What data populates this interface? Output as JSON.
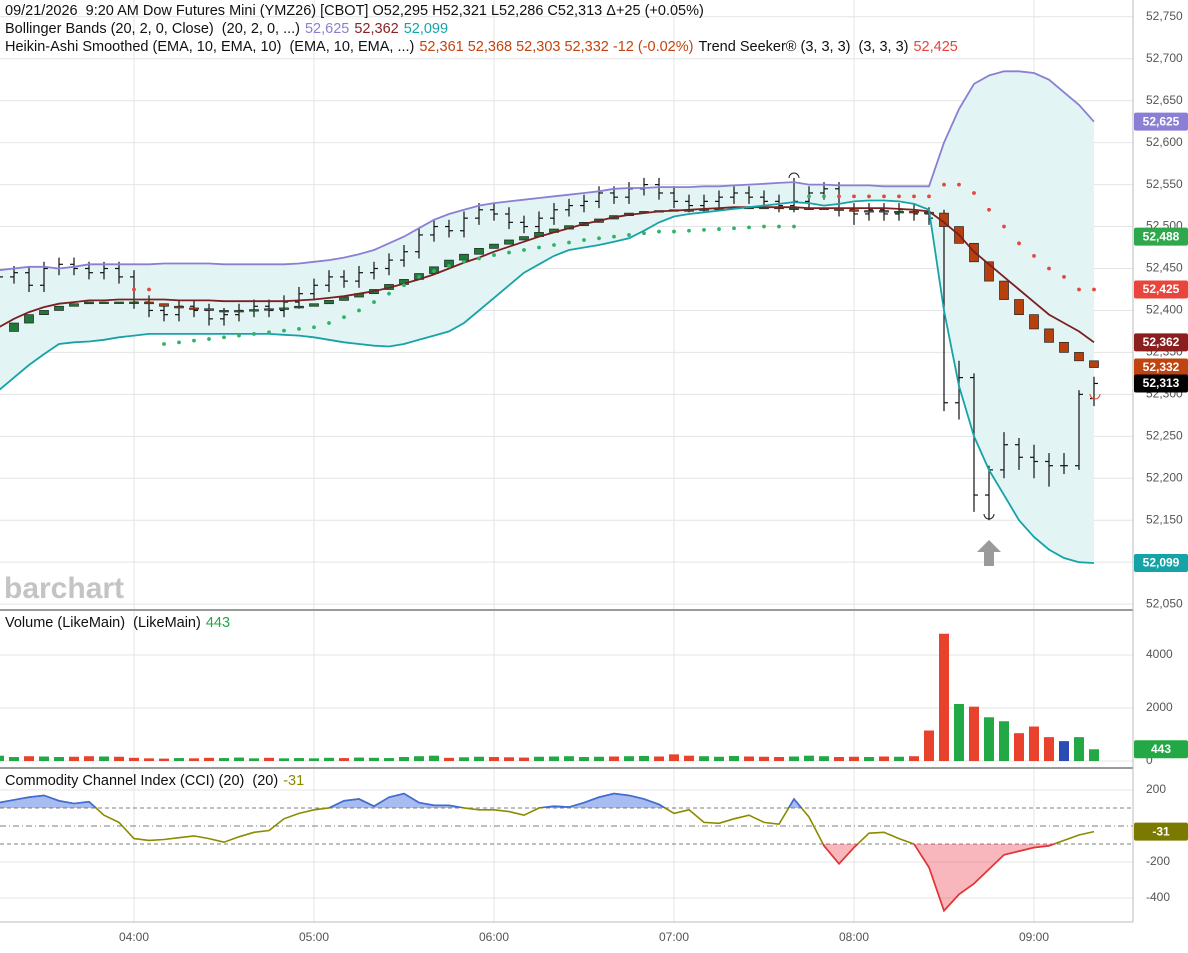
{
  "watermark": "barchart",
  "chart_data": [
    {
      "type": "ohlc",
      "legend_lines": [
        [
          {
            "text": "09/21/2026  9:20 AM Dow Futures Mini (YMZ26) [CBOT] O52,295 H52,321 L52,286 C52,313 Δ+25 (+0.05%)",
            "color": "#111111"
          }
        ],
        [
          {
            "text": "Bollinger Bands (20, 2, 0, Close)  (20, 2, 0, ...)",
            "color": "#111111"
          },
          {
            "text": "52,625",
            "color": "#8a7fd4"
          },
          {
            "text": "52,362",
            "color": "#8b1e1e"
          },
          {
            "text": "52,099",
            "color": "#16a3a8"
          }
        ],
        [
          {
            "text": "Heikin-Ashi Smoothed (EMA, 10, EMA, 10)  (EMA, 10, EMA, ...)",
            "color": "#111111"
          },
          {
            "text": "52,361 52,368 52,303 52,332 -12 (-0.02%)",
            "color": "#c0440f"
          },
          {
            "text": "Trend Seeker® (3, 3, 3)  (3, 3, 3)",
            "color": "#111111"
          },
          {
            "text": "52,425",
            "color": "#e8453c"
          }
        ]
      ],
      "open": [
        52435,
        52440,
        52445,
        52430,
        52450,
        52455,
        52450,
        52445,
        52450,
        52440,
        52410,
        52400,
        52395,
        52405,
        52400,
        52390,
        52395,
        52400,
        52405,
        52400,
        52410,
        52420,
        52430,
        52440,
        52435,
        52445,
        52450,
        52460,
        52470,
        52490,
        52500,
        52495,
        52510,
        52520,
        52515,
        52505,
        52500,
        52510,
        52520,
        52525,
        52530,
        52540,
        52535,
        52545,
        52550,
        52540,
        52530,
        52525,
        52530,
        52535,
        52540,
        52535,
        52530,
        52525,
        52530,
        52540,
        52545,
        52520,
        52515,
        52520,
        52515,
        52520,
        52515,
        52510,
        52290,
        52320,
        52180,
        52210,
        52240,
        52225,
        52220,
        52215,
        52215,
        52295
      ],
      "high": [
        52448,
        52453,
        52453,
        52458,
        52463,
        52463,
        52458,
        52458,
        52458,
        52448,
        52418,
        52408,
        52413,
        52413,
        52408,
        52403,
        52408,
        52413,
        52413,
        52418,
        52428,
        52438,
        52448,
        52448,
        52453,
        52458,
        52468,
        52478,
        52498,
        52508,
        52508,
        52518,
        52528,
        52528,
        52523,
        52513,
        52518,
        52528,
        52533,
        52538,
        52548,
        52548,
        52553,
        52558,
        52558,
        52548,
        52538,
        52538,
        52543,
        52548,
        52548,
        52543,
        52538,
        52558,
        52548,
        52553,
        52553,
        52528,
        52528,
        52528,
        52528,
        52528,
        52523,
        52520,
        52340,
        52325,
        52215,
        52255,
        52248,
        52240,
        52230,
        52230,
        52305,
        52321
      ],
      "low": [
        52427,
        52432,
        52422,
        52422,
        52442,
        52442,
        52437,
        52437,
        52432,
        52402,
        52392,
        52387,
        52387,
        52392,
        52382,
        52382,
        52387,
        52392,
        52392,
        52392,
        52402,
        52412,
        52422,
        52427,
        52427,
        52437,
        52442,
        52452,
        52462,
        52482,
        52487,
        52487,
        52502,
        52507,
        52497,
        52492,
        52492,
        52502,
        52512,
        52517,
        52522,
        52527,
        52527,
        52537,
        52532,
        52522,
        52517,
        52517,
        52522,
        52527,
        52527,
        52522,
        52517,
        52517,
        52522,
        52532,
        52512,
        52502,
        52507,
        52507,
        52507,
        52507,
        52502,
        52280,
        52270,
        52160,
        52150,
        52200,
        52210,
        52200,
        52190,
        52205,
        52210,
        52286
      ],
      "close": [
        52440,
        52445,
        52430,
        52450,
        52455,
        52450,
        52445,
        52450,
        52440,
        52410,
        52400,
        52395,
        52405,
        52400,
        52390,
        52395,
        52400,
        52405,
        52400,
        52410,
        52420,
        52430,
        52440,
        52435,
        52445,
        52450,
        52460,
        52470,
        52490,
        52500,
        52495,
        52510,
        52520,
        52515,
        52505,
        52500,
        52510,
        52520,
        52525,
        52530,
        52540,
        52535,
        52545,
        52550,
        52540,
        52530,
        52525,
        52530,
        52535,
        52540,
        52535,
        52530,
        52525,
        52530,
        52540,
        52545,
        52520,
        52515,
        52520,
        52515,
        52520,
        52515,
        52510,
        52290,
        52320,
        52180,
        52210,
        52240,
        52225,
        52220,
        52215,
        52215,
        52300,
        52313
      ],
      "bar_color": "#111111",
      "band_fill": "#e3f4f4",
      "series": [
        {
          "style": "band-upper",
          "color": "#8a7fd4",
          "values": [
            52448,
            52450,
            52452,
            52452,
            52450,
            52452,
            52455,
            52455,
            52455,
            52455,
            52455,
            52456,
            52456,
            52456,
            52456,
            52455,
            52455,
            52455,
            52455,
            52455,
            52456,
            52458,
            52460,
            52463,
            52467,
            52472,
            52480,
            52488,
            52498,
            52508,
            52515,
            52520,
            52525,
            52528,
            52530,
            52532,
            52534,
            52536,
            52538,
            52540,
            52542,
            52545,
            52546,
            52546,
            52547,
            52547,
            52547,
            52548,
            52548,
            52549,
            52550,
            52551,
            52552,
            52553,
            52550,
            52550,
            52549,
            52549,
            52549,
            52548,
            52548,
            52548,
            52548,
            52600,
            52640,
            52670,
            52680,
            52685,
            52685,
            52683,
            52675,
            52660,
            52645,
            52625
          ]
        },
        {
          "style": "candles",
          "up_color": "#1f7a3a",
          "down_color": "#b8400f",
          "values": [
            52375,
            52385,
            52395,
            52400,
            52405,
            52408,
            52410,
            52410,
            52410,
            52410,
            52408,
            52405,
            52403,
            52402,
            52400,
            52400,
            52400,
            52401,
            52402,
            52403,
            52405,
            52408,
            52412,
            52416,
            52420,
            52425,
            52431,
            52437,
            52444,
            52452,
            52460,
            52467,
            52474,
            52479,
            52484,
            52488,
            52493,
            52497,
            52501,
            52505,
            52509,
            52513,
            52516,
            52518,
            52519,
            52520,
            52520,
            52521,
            52522,
            52523,
            52523,
            52523,
            52522,
            52522,
            52522,
            52521,
            52520,
            52519,
            52519,
            52518,
            52518,
            52517,
            52516,
            52500,
            52480,
            52458,
            52435,
            52413,
            52395,
            52378,
            52362,
            52350,
            52340,
            52332
          ]
        },
        {
          "style": "line",
          "color": "#7a2020",
          "values": [
            52380,
            52390,
            52398,
            52404,
            52408,
            52410,
            52412,
            52412,
            52413,
            52413,
            52413,
            52413,
            52412,
            52412,
            52412,
            52411,
            52411,
            52411,
            52411,
            52411,
            52412,
            52413,
            52415,
            52417,
            52420,
            52423,
            52427,
            52432,
            52437,
            52443,
            52450,
            52457,
            52463,
            52470,
            52476,
            52482,
            52488,
            52493,
            52498,
            52503,
            52507,
            52511,
            52514,
            52516,
            52518,
            52519,
            52520,
            52521,
            52522,
            52523,
            52523,
            52523,
            52523,
            52523,
            52522,
            52522,
            52522,
            52522,
            52522,
            52522,
            52521,
            52520,
            52518,
            52505,
            52490,
            52470,
            52455,
            52440,
            52425,
            52410,
            52395,
            52385,
            52375,
            52362
          ]
        },
        {
          "style": "band-lower",
          "color": "#16a3a8",
          "values": [
            52305,
            52320,
            52335,
            52348,
            52360,
            52362,
            52363,
            52365,
            52368,
            52370,
            52372,
            52372,
            52372,
            52372,
            52372,
            52372,
            52372,
            52372,
            52372,
            52371,
            52370,
            52368,
            52365,
            52362,
            52360,
            52358,
            52357,
            52360,
            52365,
            52370,
            52375,
            52385,
            52400,
            52415,
            52430,
            52445,
            52455,
            52465,
            52472,
            52475,
            52478,
            52482,
            52486,
            52495,
            52505,
            52512,
            52515,
            52517,
            52519,
            52521,
            52523,
            52525,
            52527,
            52529,
            52528,
            52525,
            52527,
            52530,
            52531,
            52531,
            52530,
            52527,
            52520,
            52400,
            52310,
            52250,
            52210,
            52180,
            52150,
            52130,
            52115,
            52105,
            52100,
            52099
          ]
        },
        {
          "style": "dots",
          "up_color": "#2fb36b",
          "down_color": "#e8453c",
          "values": [
            null,
            null,
            null,
            null,
            null,
            null,
            null,
            null,
            null,
            52425,
            52425,
            52360,
            52362,
            52364,
            52366,
            52368,
            52370,
            52372,
            52374,
            52376,
            52378,
            52380,
            52385,
            52392,
            52400,
            52410,
            52420,
            52430,
            52440,
            52447,
            52453,
            52458,
            52462,
            52466,
            52469,
            52472,
            52475,
            52478,
            52481,
            52484,
            52486,
            52488,
            52490,
            52492,
            52494,
            52494,
            52495,
            52496,
            52497,
            52498,
            52499,
            52500,
            52500,
            52500,
            52536,
            52536,
            52536,
            52536,
            52536,
            52536,
            52536,
            52536,
            52536,
            52550,
            52550,
            52540,
            52520,
            52500,
            52480,
            52465,
            52450,
            52440,
            52425,
            52425
          ]
        }
      ],
      "ylim": [
        52043,
        52770
      ],
      "yticks": [
        {
          "value": 52050,
          "label": "52,050"
        },
        {
          "value": 52100,
          "label": "52,100"
        },
        {
          "value": 52150,
          "label": "52,150"
        },
        {
          "value": 52200,
          "label": "52,200"
        },
        {
          "value": 52250,
          "label": "52,250"
        },
        {
          "value": 52300,
          "label": "52,300"
        },
        {
          "value": 52350,
          "label": "52,350"
        },
        {
          "value": 52400,
          "label": "52,400"
        },
        {
          "value": 52450,
          "label": "52,450"
        },
        {
          "value": 52500,
          "label": "52,500"
        },
        {
          "value": 52550,
          "label": "52,550"
        },
        {
          "value": 52600,
          "label": "52,600"
        },
        {
          "value": 52650,
          "label": "52,650"
        },
        {
          "value": 52700,
          "label": "52,700"
        },
        {
          "value": 52750,
          "label": "52,750"
        }
      ],
      "grid": true,
      "badges": [
        {
          "value": 52625,
          "label": "52,625",
          "color": "#8a7fd4"
        },
        {
          "value": 52488,
          "label": "52,488",
          "color": "#2ea84a"
        },
        {
          "value": 52425,
          "label": "52,425",
          "color": "#e8453c"
        },
        {
          "value": 52362,
          "label": "52,362",
          "color": "#8b1e1e"
        },
        {
          "value": 52332,
          "label": "52,332",
          "color": "#c0440f"
        },
        {
          "value": 52313,
          "label": "52,313",
          "color": "#000000"
        },
        {
          "value": 52099,
          "label": "52,099",
          "color": "#16a3a8"
        }
      ]
    },
    {
      "type": "bar",
      "legend_lines": [
        [
          {
            "text": "Volume (LikeMain)  (LikeMain)",
            "color": "#111111"
          },
          {
            "text": "443",
            "color": "#22a845"
          }
        ]
      ],
      "values": [
        200,
        150,
        180,
        170,
        150,
        160,
        180,
        170,
        160,
        120,
        100,
        90,
        110,
        100,
        120,
        110,
        130,
        100,
        120,
        100,
        110,
        100,
        120,
        110,
        130,
        120,
        110,
        150,
        180,
        200,
        120,
        140,
        160,
        150,
        140,
        130,
        160,
        170,
        180,
        150,
        160,
        170,
        180,
        190,
        170,
        250,
        200,
        180,
        160,
        190,
        170,
        160,
        150,
        170,
        200,
        180,
        150,
        160,
        150,
        170,
        160,
        180,
        1150,
        4800,
        2150,
        2050,
        1650,
        1500,
        1050,
        1300,
        900,
        750,
        900,
        443
      ],
      "up_color": "#22a845",
      "down_color": "#e8412c",
      "flat_color": "#2a4bb4",
      "ylim": [
        -264,
        5620
      ],
      "yticks": [
        0,
        2000,
        4000
      ],
      "grid": true,
      "badges": [
        {
          "value": 443,
          "label": "443",
          "color": "#22a845"
        }
      ]
    },
    {
      "type": "line",
      "legend_lines": [
        [
          {
            "text": "Commodity Channel Index (CCI) (20)  (20)",
            "color": "#111111"
          },
          {
            "text": "-31",
            "color": "#8b8b00"
          }
        ]
      ],
      "categories": [
        null,
        null,
        null,
        null,
        null,
        null,
        null,
        null,
        null,
        "04:00",
        null,
        null,
        null,
        null,
        null,
        null,
        null,
        null,
        null,
        null,
        null,
        "05:00",
        null,
        null,
        null,
        null,
        null,
        null,
        null,
        null,
        null,
        null,
        null,
        "06:00",
        null,
        null,
        null,
        null,
        null,
        null,
        null,
        null,
        null,
        null,
        null,
        "07:00",
        null,
        null,
        null,
        null,
        null,
        null,
        null,
        null,
        null,
        null,
        null,
        "08:00",
        null,
        null,
        null,
        null,
        null,
        null,
        null,
        null,
        null,
        null,
        null,
        "09:00",
        null,
        null,
        null,
        null
      ],
      "values": [
        130,
        145,
        160,
        170,
        140,
        125,
        135,
        60,
        20,
        -70,
        -80,
        -75,
        -65,
        -55,
        -70,
        -90,
        -60,
        -35,
        -25,
        40,
        70,
        90,
        100,
        140,
        150,
        110,
        160,
        180,
        130,
        115,
        115,
        100,
        90,
        90,
        80,
        60,
        100,
        110,
        105,
        130,
        160,
        180,
        170,
        150,
        120,
        70,
        90,
        20,
        15,
        40,
        60,
        20,
        10,
        150,
        50,
        -110,
        -210,
        -120,
        -40,
        -35,
        -70,
        -100,
        -230,
        -470,
        -380,
        -320,
        -240,
        -160,
        -140,
        -120,
        -110,
        -80,
        -50,
        -31
      ],
      "color": "#8b8b00",
      "above_color": "#3d6be0",
      "below_color": "#e8303f",
      "guides": [
        100,
        0,
        -100
      ],
      "ylim": [
        -533,
        311
      ],
      "yticks": [
        -400,
        -200,
        200
      ],
      "grid": true,
      "badges": [
        {
          "value": -31,
          "label": "-31",
          "color": "#7a7a00"
        }
      ]
    }
  ]
}
